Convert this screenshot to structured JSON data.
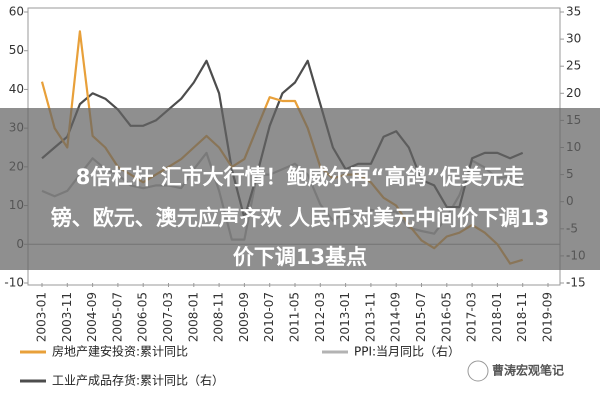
{
  "chart_data": {
    "type": "line",
    "x": [
      "2003-01",
      "2003-06",
      "2003-11",
      "2004-04",
      "2004-09",
      "2005-02",
      "2005-07",
      "2005-12",
      "2006-05",
      "2006-10",
      "2007-03",
      "2007-08",
      "2008-01",
      "2008-06",
      "2008-11",
      "2009-04",
      "2009-09",
      "2010-02",
      "2010-07",
      "2010-12",
      "2011-05",
      "2011-10",
      "2012-03",
      "2012-08",
      "2013-01",
      "2013-06",
      "2013-11",
      "2014-04",
      "2014-09",
      "2015-02",
      "2015-07",
      "2015-12",
      "2016-05",
      "2016-10",
      "2017-03",
      "2017-08",
      "2018-01",
      "2018-06",
      "2018-11",
      "2019-04",
      "2019-09"
    ],
    "xticks": [
      "2003-01",
      "2003-11",
      "2004-09",
      "2005-07",
      "2006-05",
      "2007-03",
      "2008-01",
      "2008-11",
      "2009-09",
      "2010-07",
      "2011-05",
      "2012-03",
      "2013-01",
      "2013-11",
      "2014-09",
      "2015-07",
      "2016-05",
      "2017-03",
      "2018-01",
      "2018-11",
      "2019-09"
    ],
    "ylim": [
      -10,
      60
    ],
    "yticks": [
      60,
      50,
      40,
      30,
      20,
      10,
      0,
      -10
    ],
    "y2lim": [
      -15,
      35
    ],
    "y2ticks": [
      35,
      30,
      25,
      20,
      15,
      10,
      5,
      0,
      -5,
      -10,
      -15
    ],
    "series": [
      {
        "name": "房地产建安投资:累计同比",
        "color": "#e8a03a",
        "values": [
          42,
          30,
          25,
          55,
          28,
          25,
          20,
          18,
          16,
          18,
          20,
          22,
          25,
          28,
          25,
          20,
          22,
          30,
          38,
          37,
          37,
          30,
          20,
          17,
          18,
          18,
          16,
          12,
          10,
          5,
          1,
          -1,
          2,
          3,
          5,
          3,
          0,
          -5,
          -4,
          null,
          null
        ]
      },
      {
        "name": "PPI:当月同比（右）",
        "color": "#b3b3b3",
        "axis": "y2",
        "values": [
          2,
          1,
          2,
          5,
          8,
          6,
          5,
          3,
          2.5,
          3,
          3,
          2.5,
          6,
          9,
          2,
          -7,
          -7,
          5,
          5,
          6,
          7,
          5,
          -0.5,
          -3.5,
          -2,
          -2.7,
          -1.5,
          -2,
          -1.8,
          -4.8,
          -5.4,
          -5.9,
          -2.8,
          1.2,
          7.6,
          6.3,
          4.3,
          4.7,
          2.7,
          null,
          null
        ]
      },
      {
        "name": "工业产成品存货:累计同比（右）",
        "color": "#4d4d4d",
        "axis": "y2",
        "values": [
          8,
          10,
          12,
          18,
          20,
          19,
          17,
          14,
          14,
          15,
          17,
          19,
          22,
          26,
          20,
          6,
          -3,
          5,
          14,
          20,
          22,
          26,
          18,
          10,
          6,
          7,
          7,
          12,
          13,
          10,
          4,
          3,
          -1,
          -1,
          8,
          9,
          9,
          8,
          9,
          null,
          null
        ]
      }
    ]
  },
  "overlay": {
    "lines": [
      "8倍杠杆 汇市大行情！鲍威尔再“高鸽”促美元走",
      "镑、欧元、澳元应声齐欢 人民币对美元中间价下调13",
      "价下调13基点"
    ]
  },
  "watermark": "曹涛宏观笔记"
}
